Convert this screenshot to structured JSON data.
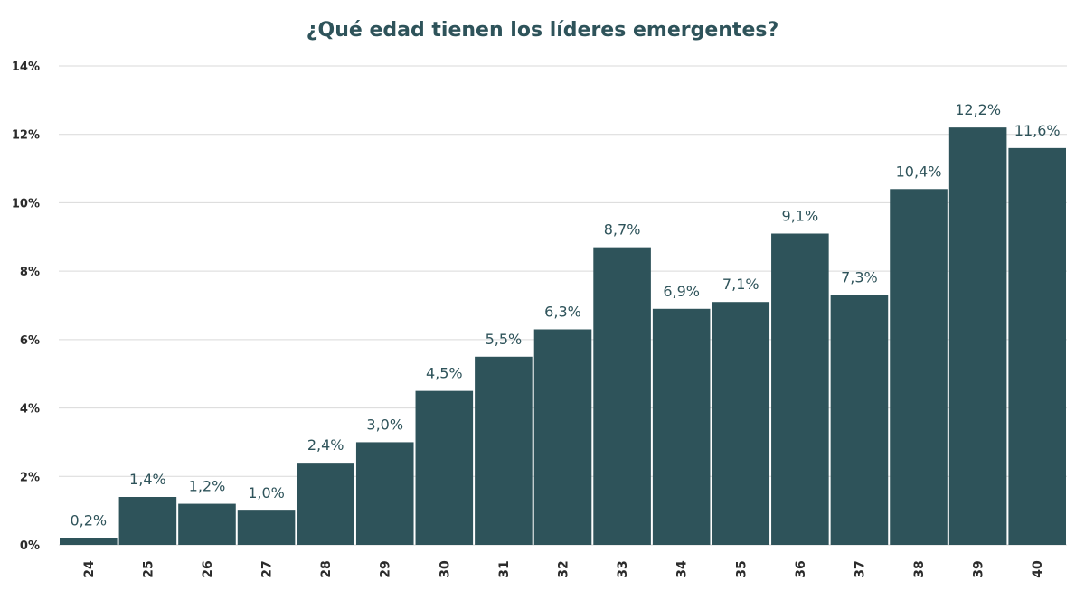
{
  "chart_data": {
    "type": "bar",
    "title": "¿Qué edad tienen los líderes emergentes?",
    "xlabel": "",
    "ylabel": "",
    "categories": [
      "24",
      "25",
      "26",
      "27",
      "28",
      "29",
      "30",
      "31",
      "32",
      "33",
      "34",
      "35",
      "36",
      "37",
      "38",
      "39",
      "40"
    ],
    "values": [
      0.2,
      1.4,
      1.2,
      1.0,
      2.4,
      3.0,
      4.5,
      5.5,
      6.3,
      8.7,
      6.9,
      7.1,
      9.1,
      7.3,
      10.4,
      12.2,
      11.6
    ],
    "data_labels": [
      "0,2%",
      "1,4%",
      "1,2%",
      "1,0%",
      "2,4%",
      "3,0%",
      "4,5%",
      "5,5%",
      "6,3%",
      "8,7%",
      "6,9%",
      "7,1%",
      "9,1%",
      "7,3%",
      "10,4%",
      "12,2%",
      "11,6%"
    ],
    "ylim": [
      0,
      14
    ],
    "yticks": [
      "0%",
      "2%",
      "4%",
      "6%",
      "8%",
      "10%",
      "12%",
      "14%"
    ],
    "grid": true,
    "legend": "none",
    "bar_color": "#2e535a"
  }
}
